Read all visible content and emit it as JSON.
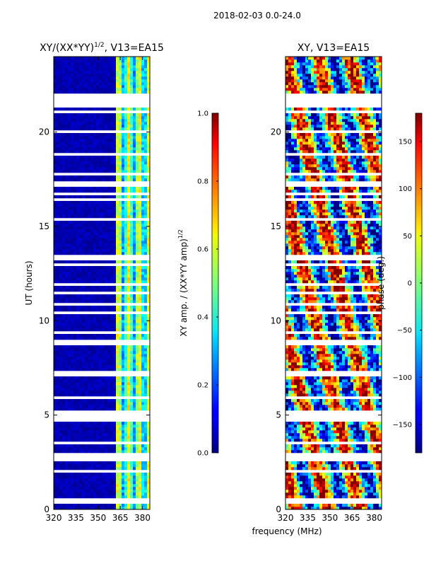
{
  "suptitle": "2018-02-03 0.0-24.0",
  "chart_data": [
    {
      "type": "heatmap",
      "title_main": "XY/(XX*YY)",
      "title_exp": "1/2",
      "title_tail": ", V13=EA15",
      "xlabel": "frequency (MHz)",
      "ylabel": "UT (hours)",
      "xlim": [
        320,
        385
      ],
      "ylim": [
        0,
        24
      ],
      "xticks": [
        320,
        335,
        350,
        365,
        380
      ],
      "yticks": [
        0,
        5,
        10,
        15,
        20
      ],
      "colorbar": {
        "label_main": "XY amp. / (XX*YY amp)",
        "label_exp": "1/2",
        "range": [
          0.0,
          1.0
        ],
        "ticks": [
          "0.0",
          "0.2",
          "0.4",
          "0.6",
          "0.8",
          "1.0"
        ],
        "tick_values": [
          0.0,
          0.2,
          0.4,
          0.6,
          0.8,
          1.0
        ],
        "colormap": "jet"
      },
      "description": "Normalized cross-hand amplitude: mostly ~0.05 below 362 MHz, ~0.4-0.6 in bands 362-385 MHz; horizontal white gaps are flagged times"
    },
    {
      "type": "heatmap",
      "title": "XY, V13=EA15",
      "xlabel": "frequency (MHz)",
      "ylabel": "",
      "xlim": [
        320,
        385
      ],
      "ylim": [
        0,
        24
      ],
      "xticks": [
        320,
        335,
        350,
        365,
        380
      ],
      "yticks": [
        0,
        5,
        10,
        15,
        20
      ],
      "colorbar": {
        "label": "phase (deg.)",
        "range": [
          -180,
          180
        ],
        "ticks": [
          "150",
          "100",
          "50",
          "0",
          "−50",
          "−100",
          "−150"
        ],
        "tick_values": [
          150,
          100,
          50,
          0,
          -50,
          -100,
          -150
        ],
        "colormap": "jet"
      },
      "description": "Cross-hand phase in degrees, noisy across the band with horizontal white gaps at flagged times"
    }
  ]
}
